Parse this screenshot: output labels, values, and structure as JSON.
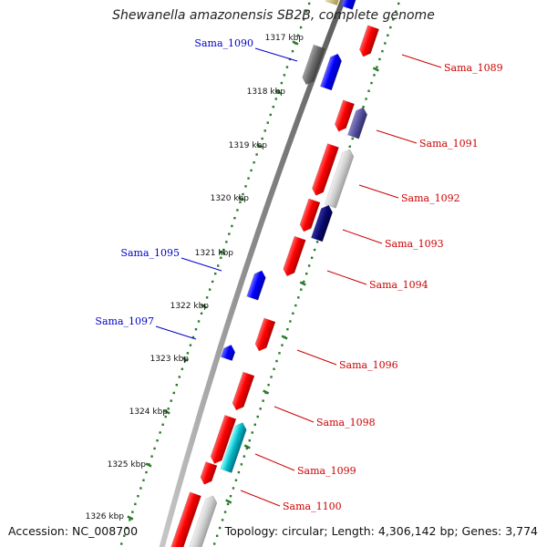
{
  "title": "Shewanella amazonensis SB2B, complete genome",
  "footer": {
    "accession": "Accession: NC_008700",
    "topology": "Topology: circular; Length: 4,306,142 bp; Genes: 3,774"
  },
  "colors": {
    "forward_label": "#0000cc",
    "reverse_label": "#cc0000",
    "tick": "#2a7a2a",
    "backbone": "#8a8a8a"
  },
  "kbp_ticks": [
    "1317 kbp",
    "1318 kbp",
    "1319 kbp",
    "1320 kbp",
    "1321 kbp",
    "1322 kbp",
    "1323 kbp",
    "1324 kbp",
    "1325 kbp",
    "1326 kbp"
  ],
  "gene_labels": [
    {
      "text": "Sama_1089",
      "strand": "reverse"
    },
    {
      "text": "Sama_1090",
      "strand": "forward"
    },
    {
      "text": "Sama_1091",
      "strand": "reverse"
    },
    {
      "text": "Sama_1092",
      "strand": "reverse"
    },
    {
      "text": "Sama_1093",
      "strand": "reverse"
    },
    {
      "text": "Sama_1094",
      "strand": "reverse"
    },
    {
      "text": "Sama_1095",
      "strand": "forward"
    },
    {
      "text": "Sama_1096",
      "strand": "reverse"
    },
    {
      "text": "Sama_1097",
      "strand": "forward"
    },
    {
      "text": "Sama_1098",
      "strand": "reverse"
    },
    {
      "text": "Sama_1099",
      "strand": "reverse"
    },
    {
      "text": "Sama_1100",
      "strand": "reverse"
    }
  ]
}
